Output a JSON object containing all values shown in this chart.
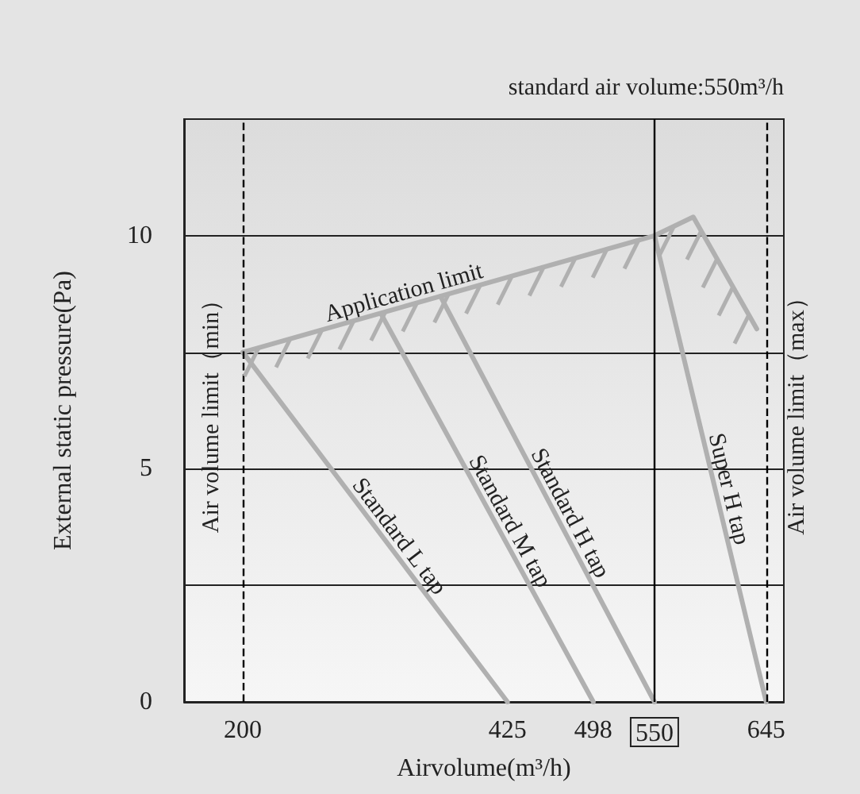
{
  "chart_data": {
    "type": "line",
    "xlabel": "Airvolume(m³/h)",
    "ylabel": "External static pressure(Pa)",
    "annotations": [
      "standard air volume:550m³/h"
    ],
    "xlim": [
      150,
      660
    ],
    "xticks": [
      200,
      425,
      498,
      550,
      645
    ],
    "ylim": [
      0,
      12.5
    ],
    "yticks": [
      0,
      {
        "value": 2.5,
        "label": null
      },
      5,
      {
        "value": 7.5,
        "label": null
      },
      10
    ],
    "series": [
      {
        "name": "Application limit",
        "color": "#b0b0b0",
        "x": [
          200,
          550,
          583,
          637
        ],
        "values": [
          7.5,
          10,
          10.4,
          8
        ]
      },
      {
        "name": "Standard L tap",
        "color": "#b0b0b0",
        "x": [
          200,
          425
        ],
        "values": [
          7.5,
          0
        ]
      },
      {
        "name": "Standard M tap",
        "color": "#b0b0b0",
        "x": [
          318,
          498
        ],
        "values": [
          8.3,
          0
        ]
      },
      {
        "name": "Standard H tap",
        "color": "#b0b0b0",
        "x": [
          368,
          550
        ],
        "values": [
          8.7,
          0
        ]
      },
      {
        "name": "Super H tap",
        "color": "#b0b0b0",
        "x": [
          550,
          645
        ],
        "values": [
          10,
          0
        ]
      }
    ],
    "ref_lines": [
      {
        "axis": "x",
        "value": 200,
        "label": "Air volume limit（min）",
        "line_style": "dashed",
        "color": "#000000"
      },
      {
        "axis": "x",
        "value": 550,
        "label": null,
        "line_style": "solid",
        "color": "#000000"
      },
      {
        "axis": "x",
        "value": 645,
        "label": "Air volume limit（max）",
        "line_style": "dashed",
        "color": "#000000"
      }
    ],
    "grid": "y",
    "line_style": "solid"
  }
}
